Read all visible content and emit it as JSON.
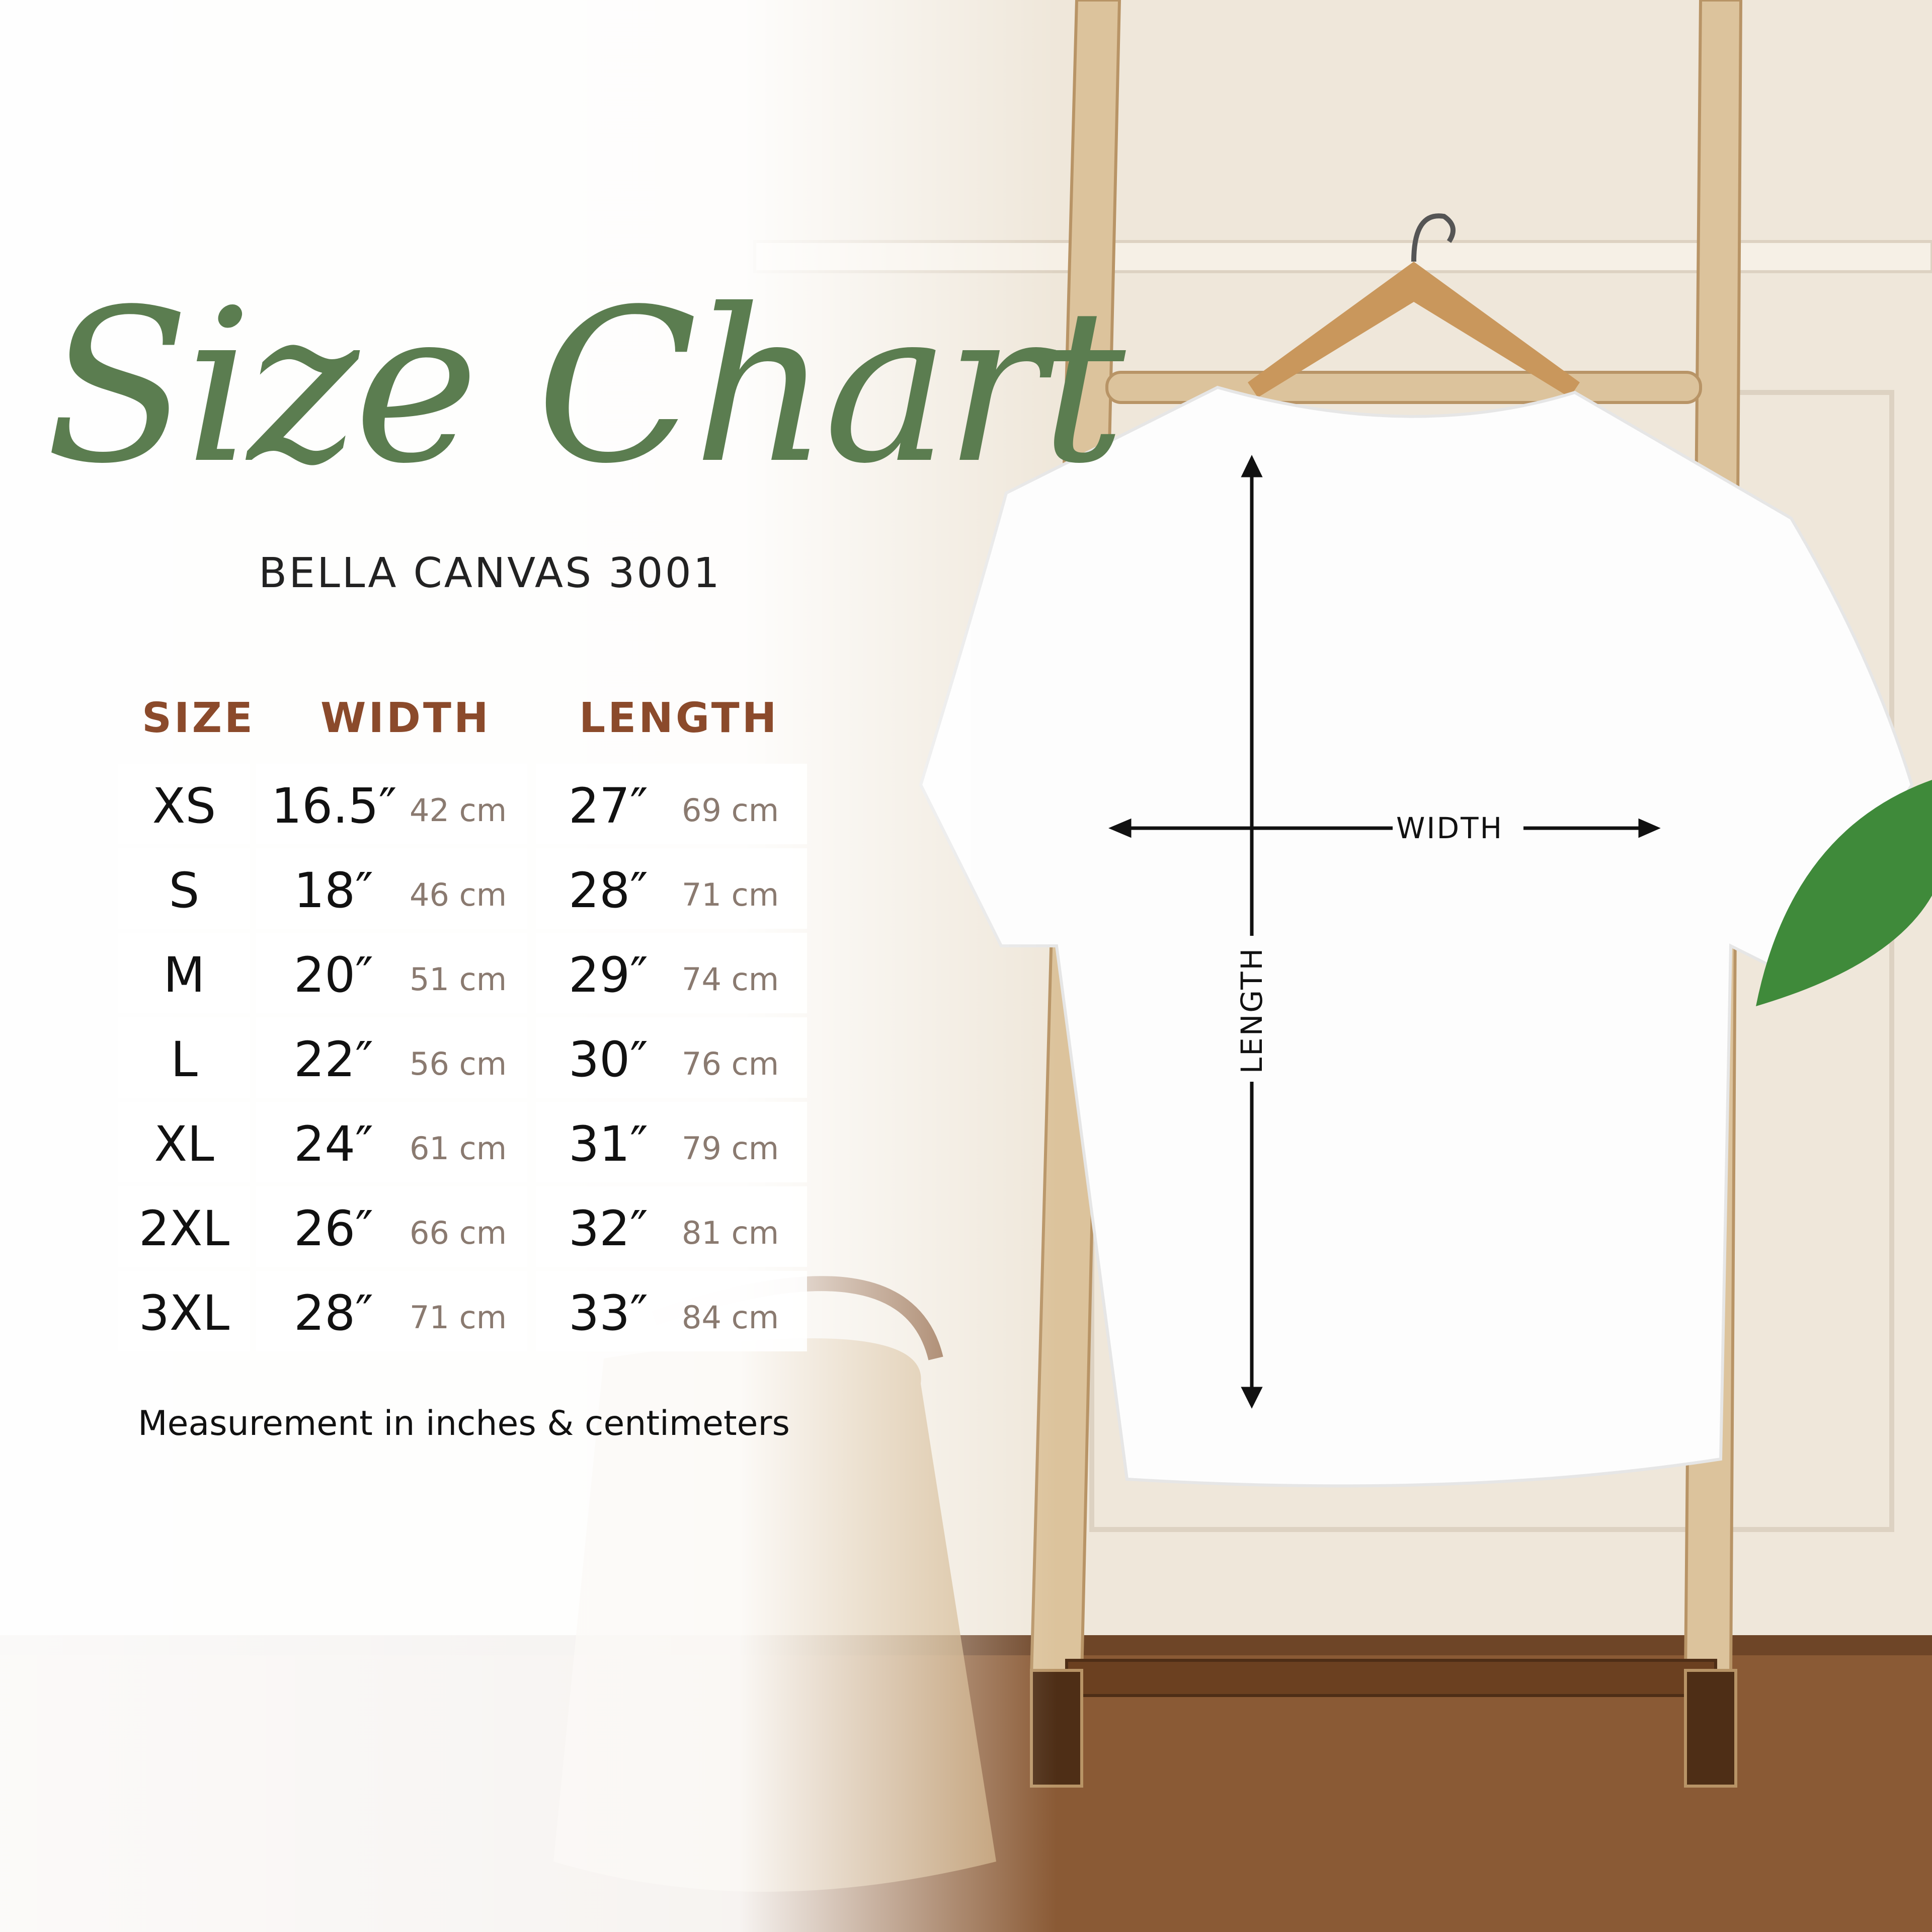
{
  "title": "Size Chart",
  "subtitle": "BELLA CANVAS 3001",
  "colors": {
    "title": "#5b7d50",
    "header": "#8b4a2b",
    "cm": "#8a7a70"
  },
  "table": {
    "headers": [
      "SIZE",
      "WIDTH",
      "LENGTH"
    ],
    "rows": [
      {
        "size": "XS",
        "width_in": "16.5″",
        "width_cm": "42 cm",
        "length_in": "27″",
        "length_cm": "69 cm"
      },
      {
        "size": "S",
        "width_in": "18″",
        "width_cm": "46 cm",
        "length_in": "28″",
        "length_cm": "71 cm"
      },
      {
        "size": "M",
        "width_in": "20″",
        "width_cm": "51 cm",
        "length_in": "29″",
        "length_cm": "74 cm"
      },
      {
        "size": "L",
        "width_in": "22″",
        "width_cm": "56 cm",
        "length_in": "30″",
        "length_cm": "76 cm"
      },
      {
        "size": "XL",
        "width_in": "24″",
        "width_cm": "61 cm",
        "length_in": "31″",
        "length_cm": "79 cm"
      },
      {
        "size": "2XL",
        "width_in": "26″",
        "width_cm": "66 cm",
        "length_in": "32″",
        "length_cm": "81 cm"
      },
      {
        "size": "3XL",
        "width_in": "28″",
        "width_cm": "71 cm",
        "length_in": "33″",
        "length_cm": "84 cm"
      }
    ]
  },
  "note": "Measurement in inches & centimeters",
  "diagram": {
    "width_label": "WIDTH",
    "length_label": "LENGTH"
  }
}
